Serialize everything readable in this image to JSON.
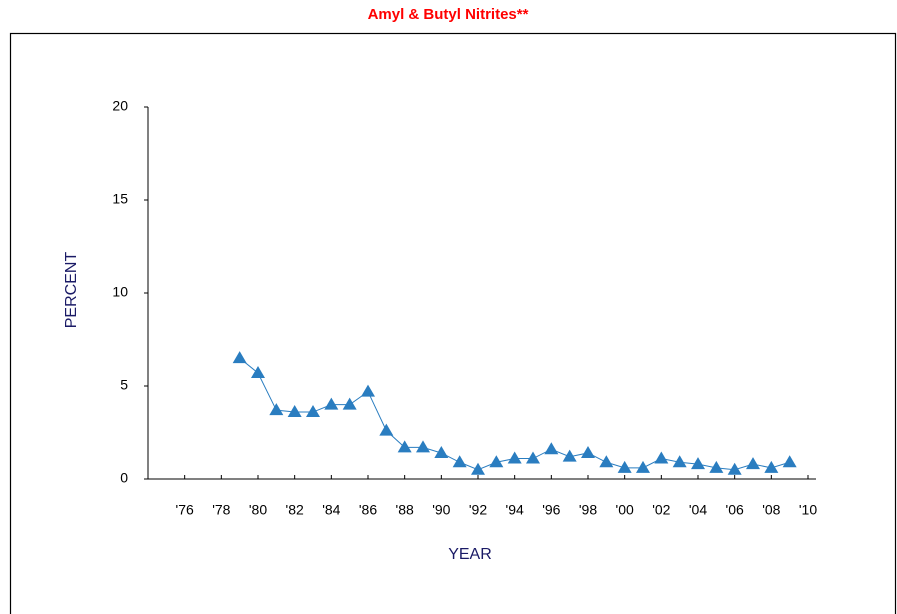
{
  "chart_data": {
    "type": "line",
    "title": "Amyl & Butyl Nitrites**",
    "xlabel": "YEAR",
    "ylabel": "PERCENT",
    "x": [
      1979,
      1980,
      1981,
      1982,
      1983,
      1984,
      1985,
      1986,
      1987,
      1988,
      1989,
      1990,
      1991,
      1992,
      1993,
      1994,
      1995,
      1996,
      1997,
      1998,
      1999,
      2000,
      2001,
      2002,
      2003,
      2004,
      2005,
      2006,
      2007,
      2008,
      2009
    ],
    "series": [
      {
        "name": "Amyl & Butyl Nitrites",
        "color": "#2a7dc0",
        "values": [
          6.5,
          5.7,
          3.7,
          3.6,
          3.6,
          4.0,
          4.0,
          4.7,
          2.6,
          1.7,
          1.7,
          1.4,
          0.9,
          0.5,
          0.9,
          1.1,
          1.1,
          1.6,
          1.2,
          1.4,
          0.9,
          0.6,
          0.6,
          1.1,
          0.9,
          0.8,
          0.6,
          0.5,
          0.8,
          0.6,
          0.9
        ]
      }
    ],
    "xlim": [
      1974,
      2010
    ],
    "xticks": [
      {
        "value": 1976,
        "label": "'76"
      },
      {
        "value": 1978,
        "label": "'78"
      },
      {
        "value": 1980,
        "label": "'80"
      },
      {
        "value": 1982,
        "label": "'82"
      },
      {
        "value": 1984,
        "label": "'84"
      },
      {
        "value": 1986,
        "label": "'86"
      },
      {
        "value": 1988,
        "label": "'88"
      },
      {
        "value": 1990,
        "label": "'90"
      },
      {
        "value": 1992,
        "label": "'92"
      },
      {
        "value": 1994,
        "label": "'94"
      },
      {
        "value": 1996,
        "label": "'96"
      },
      {
        "value": 1998,
        "label": "'98"
      },
      {
        "value": 2000,
        "label": "'00"
      },
      {
        "value": 2002,
        "label": "'02"
      },
      {
        "value": 2004,
        "label": "'04"
      },
      {
        "value": 2006,
        "label": "'06"
      },
      {
        "value": 2008,
        "label": "'08"
      },
      {
        "value": 2010,
        "label": "'10"
      }
    ],
    "ylim": [
      0,
      20
    ],
    "yticks": [
      0,
      5,
      10,
      15,
      20
    ],
    "grid": false
  }
}
